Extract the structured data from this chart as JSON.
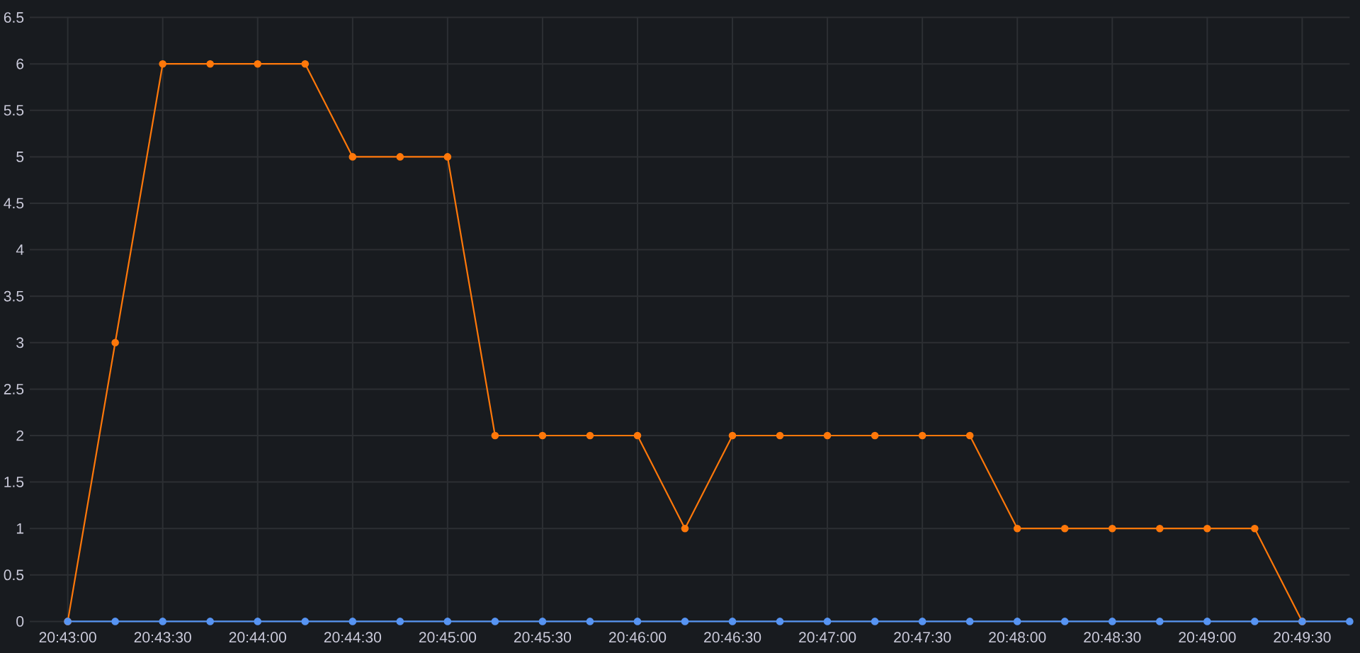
{
  "chart_data": {
    "type": "line",
    "x": [
      20.716667,
      20.720833,
      20.725,
      20.729167,
      20.733333,
      20.7375,
      20.741667,
      20.745833,
      20.75,
      20.754167,
      20.758333,
      20.7625,
      20.766667,
      20.770833,
      20.775,
      20.779167,
      20.783333,
      20.7875,
      20.791667,
      20.795833,
      20.8,
      20.804167,
      20.808333,
      20.8125,
      20.816667,
      20.820833,
      20.825,
      20.829167
    ],
    "series": [
      {
        "color": "#ff780a",
        "values": [
          0,
          3,
          6,
          6,
          6,
          6,
          5,
          5,
          5,
          2,
          2,
          2,
          2,
          1,
          2,
          2,
          2,
          2,
          2,
          2,
          1,
          1,
          1,
          1,
          1,
          1,
          0,
          null
        ]
      },
      {
        "color": "#5794f2",
        "values": [
          0,
          0,
          0,
          0,
          0,
          0,
          0,
          0,
          0,
          0,
          0,
          0,
          0,
          0,
          0,
          0,
          0,
          0,
          0,
          0,
          0,
          0,
          0,
          0,
          0,
          0,
          0,
          0
        ]
      }
    ],
    "xlim": [
      20.713333,
      20.829167
    ],
    "ylim": [
      0,
      6.5
    ],
    "xticks": [
      {
        "value": 20.716667,
        "label": "20:43:00"
      },
      {
        "value": 20.725,
        "label": "20:43:30"
      },
      {
        "value": 20.733333,
        "label": "20:44:00"
      },
      {
        "value": 20.741667,
        "label": "20:44:30"
      },
      {
        "value": 20.75,
        "label": "20:45:00"
      },
      {
        "value": 20.758333,
        "label": "20:45:30"
      },
      {
        "value": 20.766667,
        "label": "20:46:00"
      },
      {
        "value": 20.775,
        "label": "20:46:30"
      },
      {
        "value": 20.783333,
        "label": "20:47:00"
      },
      {
        "value": 20.791667,
        "label": "20:47:30"
      },
      {
        "value": 20.8,
        "label": "20:48:00"
      },
      {
        "value": 20.808333,
        "label": "20:48:30"
      },
      {
        "value": 20.816667,
        "label": "20:49:00"
      },
      {
        "value": 20.825,
        "label": "20:49:30"
      }
    ],
    "yticks": [
      0,
      0.5,
      1,
      1.5,
      2,
      2.5,
      3,
      3.5,
      4,
      4.5,
      5,
      5.5,
      6,
      6.5
    ],
    "grid": true,
    "marker": "circle",
    "line_style": "solid"
  }
}
